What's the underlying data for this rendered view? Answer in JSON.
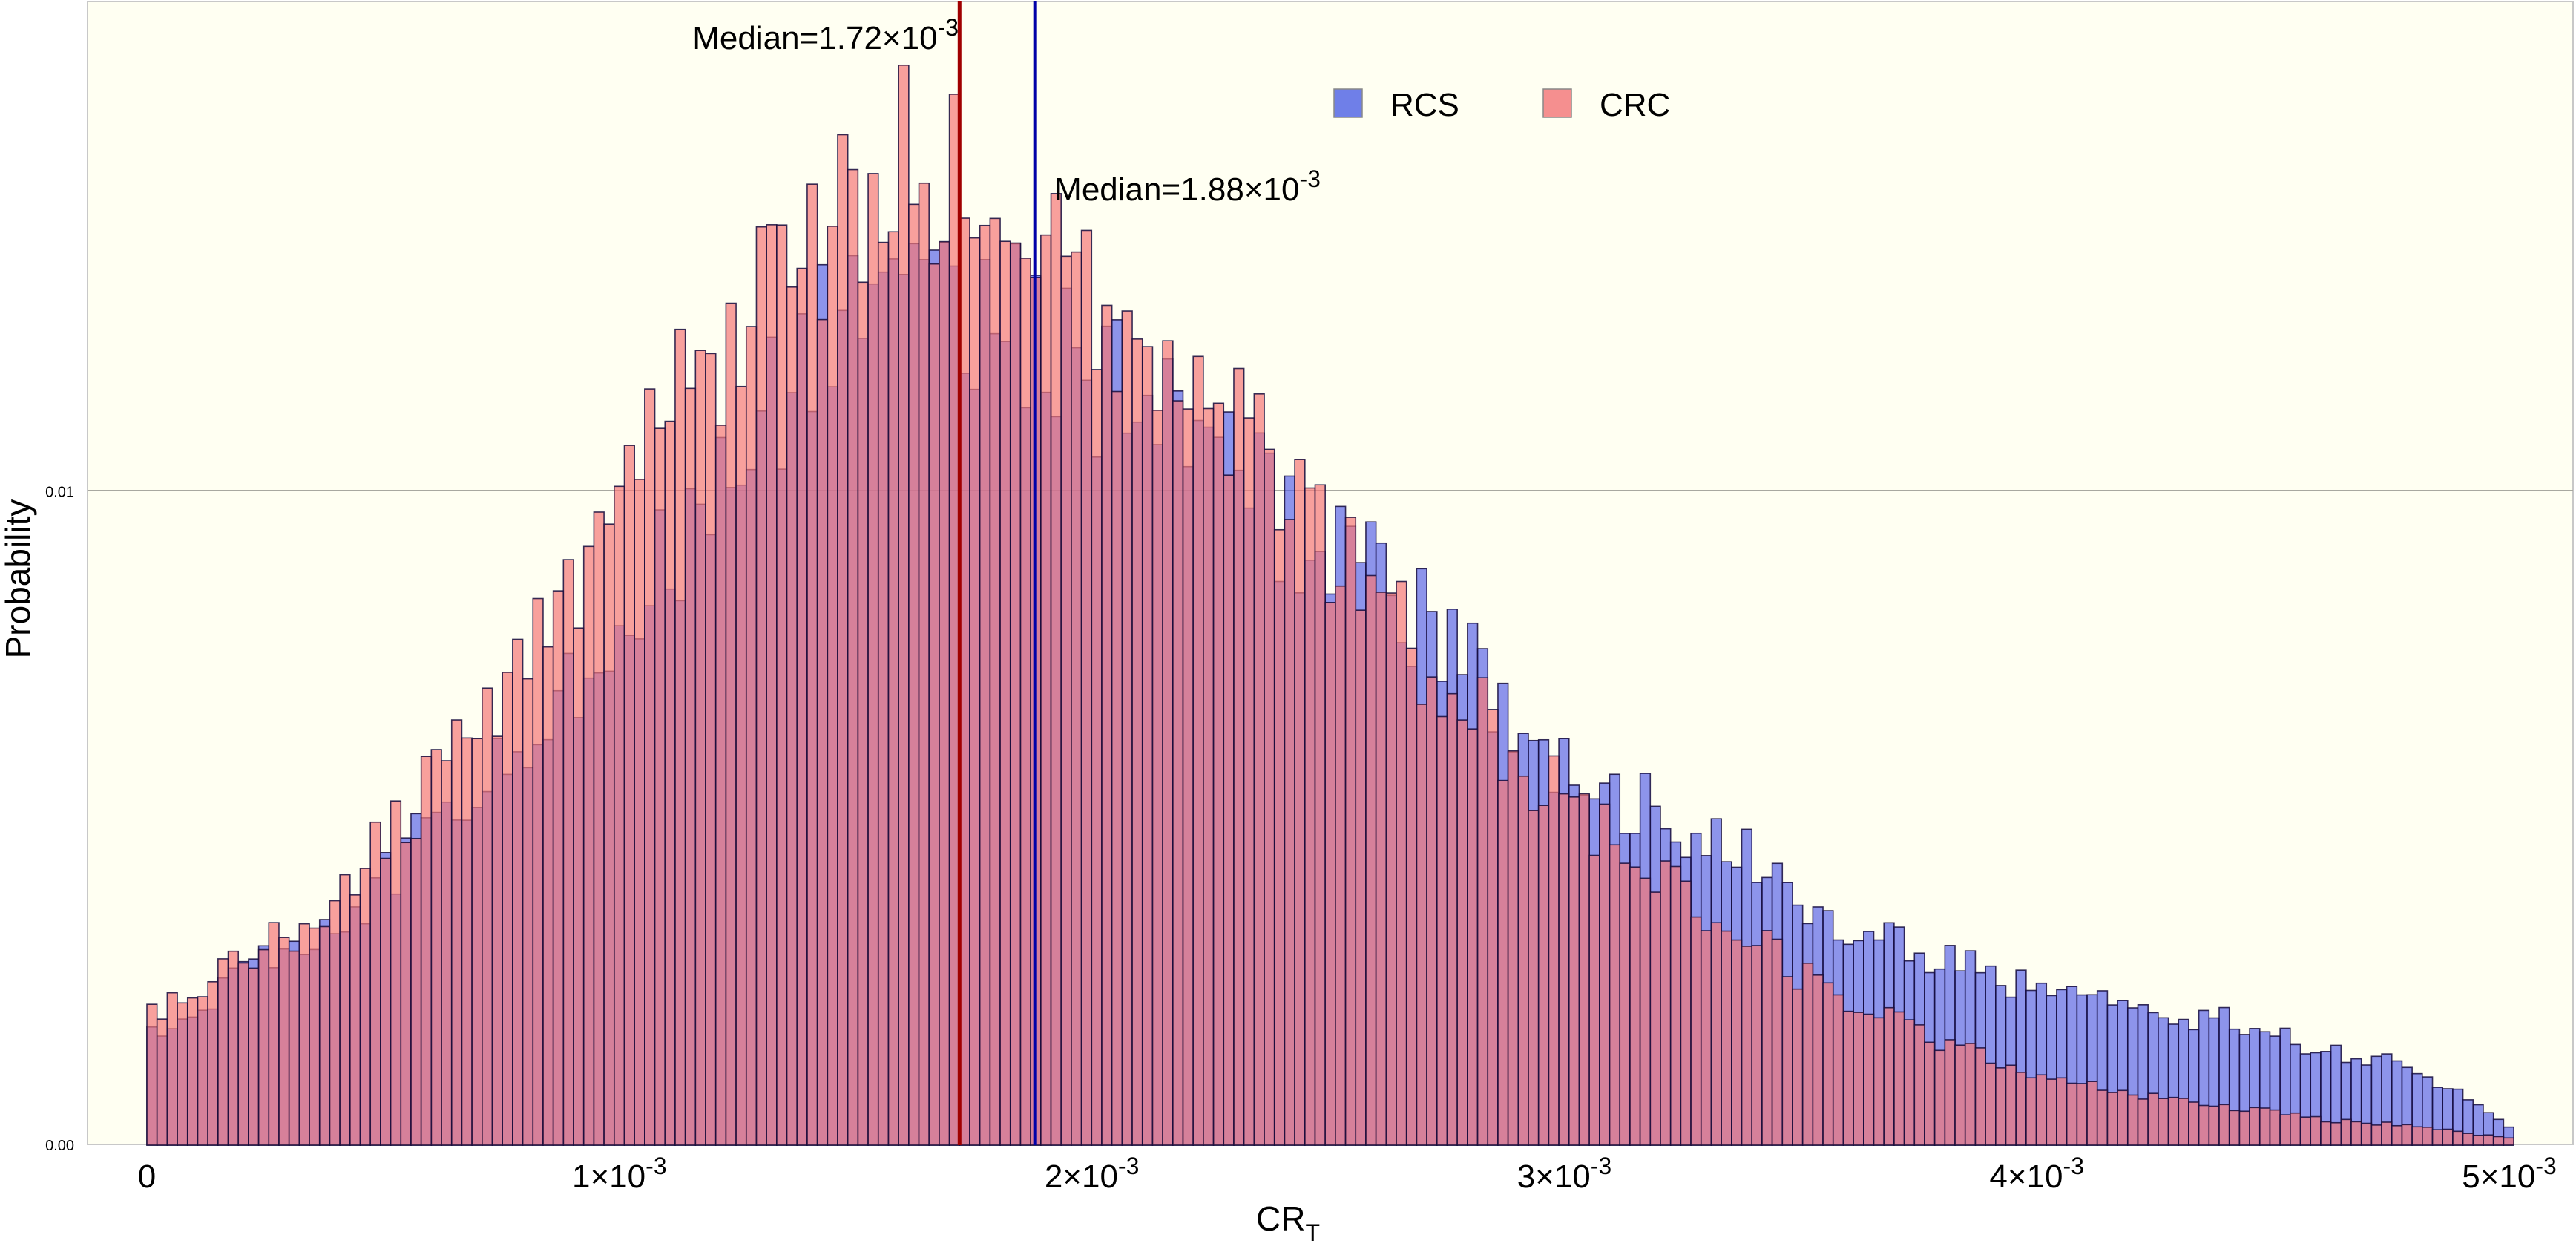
{
  "chart_data": {
    "type": "histogram",
    "title": "",
    "xlabel": "CR",
    "xlabel_subscript": "T",
    "ylabel": "Probability",
    "xlim": [
      0,
      0.005
    ],
    "ylim": [
      0,
      0.0175
    ],
    "bin_width": 2.15e-05,
    "x_ticks": [
      {
        "value": 0,
        "label": "0"
      },
      {
        "value": 0.001,
        "label": "1×10",
        "exp": "-3"
      },
      {
        "value": 0.002,
        "label": "2×10",
        "exp": "-3"
      },
      {
        "value": 0.003,
        "label": "3×10",
        "exp": "-3"
      },
      {
        "value": 0.004,
        "label": "4×10",
        "exp": "-3"
      },
      {
        "value": 0.005,
        "label": "5×10",
        "exp": "-3"
      }
    ],
    "y_ticks": [
      {
        "value": 0,
        "label": "0.00"
      },
      {
        "value": 0.01,
        "label": "0.01"
      }
    ],
    "gridlines": [
      0.01
    ],
    "legend": {
      "placement": "top-center",
      "items": [
        {
          "name": "RCS",
          "color": "#6f7fe8"
        },
        {
          "name": "CRC",
          "color": "#f58f8f"
        }
      ]
    },
    "medians": [
      {
        "series": "CRC",
        "value": 0.00172,
        "label": "Median=1.72×10",
        "exp": "-3",
        "color": "#a00000"
      },
      {
        "series": "RCS",
        "value": 0.00188,
        "label": "Median=1.88×10",
        "exp": "-3",
        "color": "#0000a8"
      }
    ],
    "series": [
      {
        "name": "RCS",
        "color": "#6f7fe8",
        "points": [
          [
            0.0,
            0.0017
          ],
          [
            0.0002,
            0.0026
          ],
          [
            0.0004,
            0.0033
          ],
          [
            0.0006,
            0.0048
          ],
          [
            0.0008,
            0.0063
          ],
          [
            0.001,
            0.0081
          ],
          [
            0.0012,
            0.0099
          ],
          [
            0.0014,
            0.0122
          ],
          [
            0.0016,
            0.0132
          ],
          [
            0.0018,
            0.0129
          ],
          [
            0.002,
            0.0117
          ],
          [
            0.0022,
            0.0107
          ],
          [
            0.0024,
            0.0096
          ],
          [
            0.0026,
            0.0087
          ],
          [
            0.0028,
            0.0073
          ],
          [
            0.003,
            0.0058
          ],
          [
            0.0032,
            0.0051
          ],
          [
            0.0034,
            0.0043
          ],
          [
            0.0036,
            0.0034
          ],
          [
            0.0038,
            0.0028
          ],
          [
            0.004,
            0.0024
          ],
          [
            0.0042,
            0.0021
          ],
          [
            0.0044,
            0.0019
          ],
          [
            0.0046,
            0.0015
          ],
          [
            0.0048,
            0.0012
          ],
          [
            0.005,
            0.0003
          ]
        ]
      },
      {
        "name": "CRC",
        "color": "#f58f8f",
        "points": [
          [
            0.0,
            0.0019
          ],
          [
            0.0002,
            0.0028
          ],
          [
            0.0004,
            0.0037
          ],
          [
            0.0006,
            0.0055
          ],
          [
            0.0008,
            0.0073
          ],
          [
            0.001,
            0.0099
          ],
          [
            0.0012,
            0.0122
          ],
          [
            0.0014,
            0.0138
          ],
          [
            0.0016,
            0.0151
          ],
          [
            0.0018,
            0.0146
          ],
          [
            0.002,
            0.0134
          ],
          [
            0.0022,
            0.0116
          ],
          [
            0.0024,
            0.0101
          ],
          [
            0.0026,
            0.0083
          ],
          [
            0.0028,
            0.0068
          ],
          [
            0.003,
            0.0052
          ],
          [
            0.0032,
            0.0041
          ],
          [
            0.0034,
            0.0031
          ],
          [
            0.0036,
            0.0022
          ],
          [
            0.0038,
            0.0016
          ],
          [
            0.004,
            0.0011
          ],
          [
            0.0042,
            0.0008
          ],
          [
            0.0044,
            0.0006
          ],
          [
            0.0046,
            0.0004
          ],
          [
            0.0048,
            0.0003
          ],
          [
            0.005,
            0.0001
          ]
        ]
      }
    ]
  }
}
